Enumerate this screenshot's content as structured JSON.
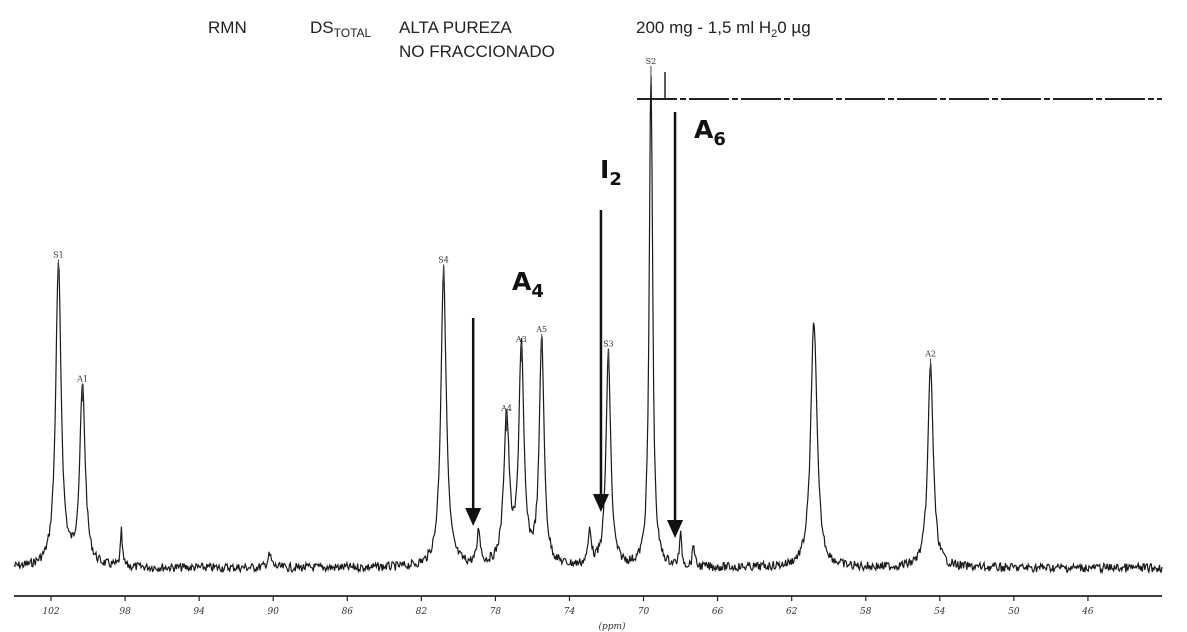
{
  "header": {
    "technique": "RMN",
    "ds_main": "DS",
    "ds_sub": "TOTAL",
    "purity": "ALTA PUREZA",
    "fraction": "NO FRACCIONADO",
    "conc_pre": "200 mg - 1,5 ml H",
    "conc_sub": "2",
    "conc_post": "0 µg"
  },
  "annotations": [
    {
      "label": "A",
      "sub": "4",
      "ppm": 79.2
    },
    {
      "label": "I",
      "sub": "2",
      "ppm": 72.3
    },
    {
      "label": "A",
      "sub": "6",
      "ppm": 68.3
    }
  ],
  "chart_data": {
    "type": "line",
    "title": "",
    "xlabel": "(ppm)",
    "ylabel": "",
    "xlim": [
      104,
      42
    ],
    "x_reversed": true,
    "ylim": [
      0,
      1
    ],
    "grid": false,
    "x_ticks": [
      {
        "value": 102,
        "label": "102"
      },
      {
        "value": 98,
        "label": "98"
      },
      {
        "value": 94,
        "label": "94"
      },
      {
        "value": 90,
        "label": "90"
      },
      {
        "value": 86,
        "label": "86"
      },
      {
        "value": 82,
        "label": "82"
      },
      {
        "value": 78,
        "label": "78"
      },
      {
        "value": 74,
        "label": "74"
      },
      {
        "value": 70,
        "label": "70"
      },
      {
        "value": 66,
        "label": "66"
      },
      {
        "value": 62,
        "label": "62"
      },
      {
        "value": 58,
        "label": "58"
      },
      {
        "value": 54,
        "label": "54"
      },
      {
        "value": 50,
        "label": "50"
      },
      {
        "value": 46,
        "label": "46"
      }
    ],
    "peaks": [
      {
        "ppm": 101.6,
        "height": 0.61,
        "width": 0.35,
        "label": "S1"
      },
      {
        "ppm": 100.3,
        "height": 0.36,
        "width": 0.35,
        "label": "A1"
      },
      {
        "ppm": 98.2,
        "height": 0.07,
        "width": 0.12,
        "label": ""
      },
      {
        "ppm": 90.2,
        "height": 0.025,
        "width": 0.25,
        "label": ""
      },
      {
        "ppm": 80.8,
        "height": 0.6,
        "width": 0.35,
        "label": "S4"
      },
      {
        "ppm": 78.9,
        "height": 0.07,
        "width": 0.2,
        "label": ""
      },
      {
        "ppm": 77.4,
        "height": 0.3,
        "width": 0.35,
        "label": "A4"
      },
      {
        "ppm": 76.6,
        "height": 0.44,
        "width": 0.32,
        "label": "A3"
      },
      {
        "ppm": 75.5,
        "height": 0.46,
        "width": 0.3,
        "label": "A5"
      },
      {
        "ppm": 72.9,
        "height": 0.07,
        "width": 0.2,
        "label": ""
      },
      {
        "ppm": 71.9,
        "height": 0.43,
        "width": 0.3,
        "label": "S3"
      },
      {
        "ppm": 69.6,
        "height": 1.0,
        "width": 0.22,
        "label": "S2"
      },
      {
        "ppm": 68.0,
        "height": 0.06,
        "width": 0.15,
        "label": ""
      },
      {
        "ppm": 67.3,
        "height": 0.05,
        "width": 0.12,
        "label": ""
      },
      {
        "ppm": 60.8,
        "height": 0.5,
        "width": 0.4,
        "label": ""
      },
      {
        "ppm": 54.5,
        "height": 0.41,
        "width": 0.35,
        "label": "A2"
      }
    ]
  }
}
